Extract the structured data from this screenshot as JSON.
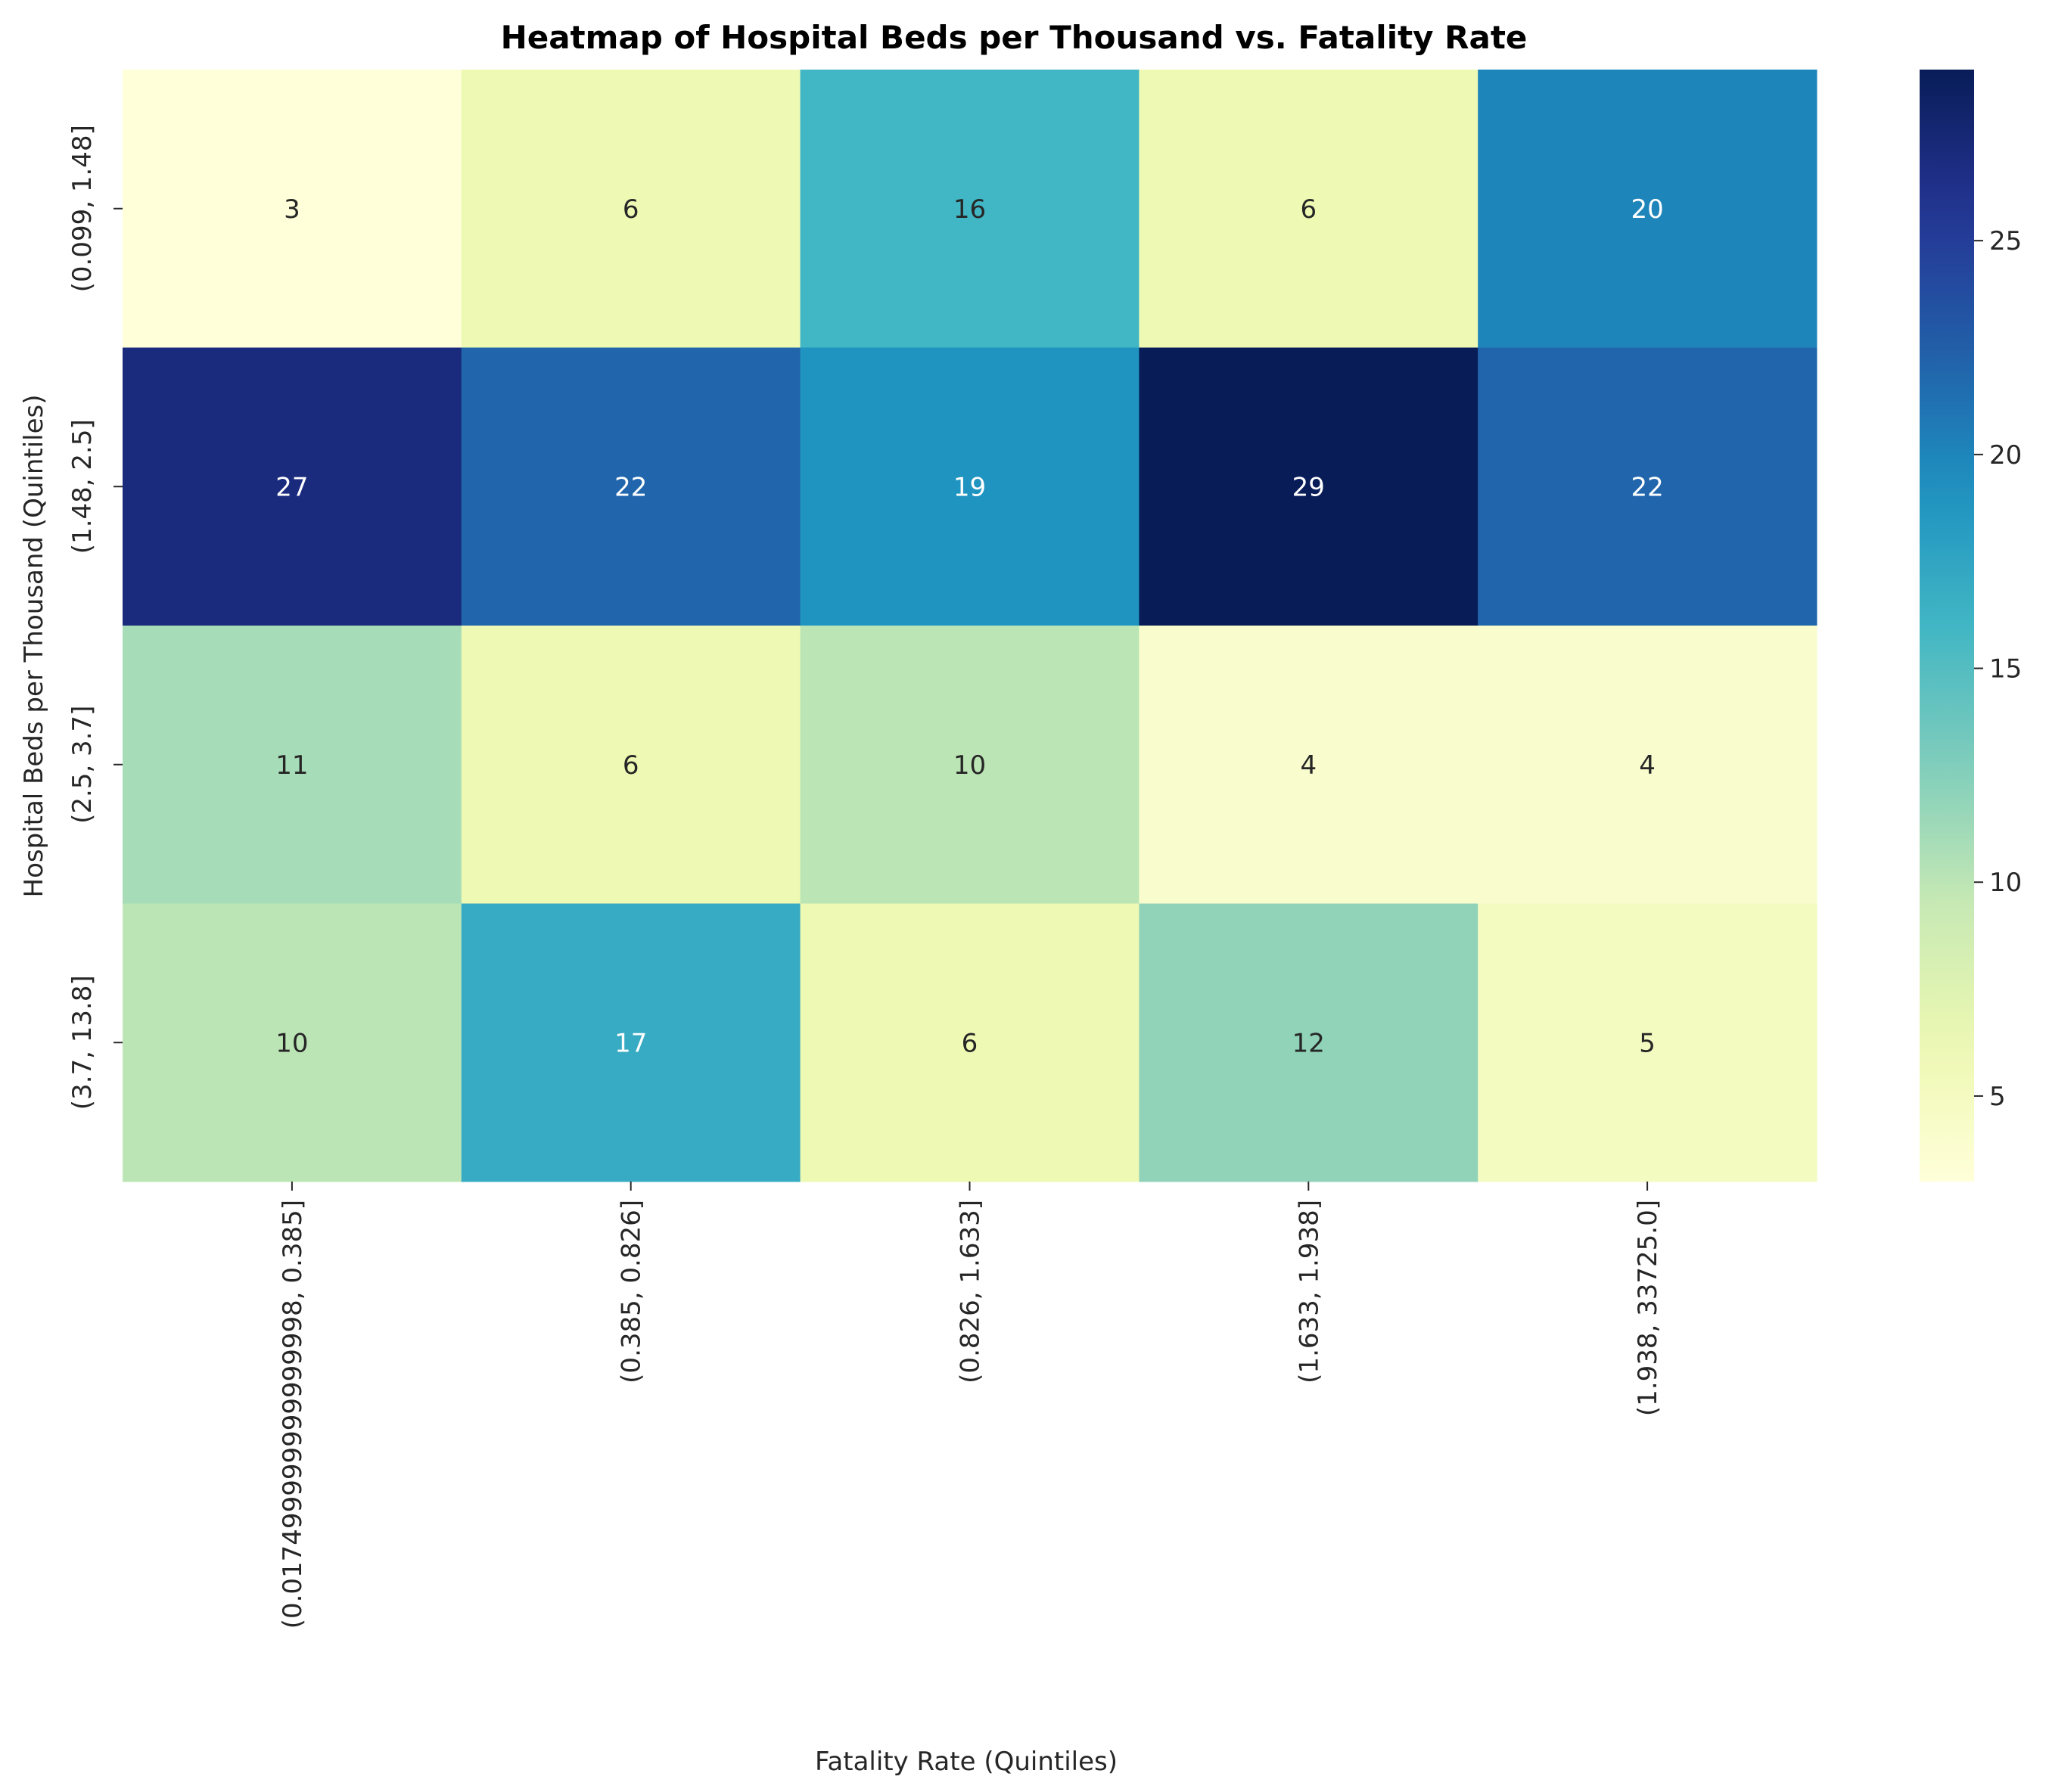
{
  "chart_data": {
    "type": "heatmap",
    "title": "Heatmap of Hospital Beds per Thousand vs. Fatality Rate",
    "xlabel": "Fatality Rate (Quintiles)",
    "ylabel": "Hospital Beds per Thousand (Quintiles)",
    "x_categories": [
      "(0.017499999999999998, 0.385]",
      "(0.385, 0.826]",
      "(0.826, 1.633]",
      "(1.633, 1.938]",
      "(1.938, 33725.0]"
    ],
    "y_categories": [
      "(0.099, 1.48]",
      "(1.48, 2.5]",
      "(2.5, 3.7]",
      "(3.7, 13.8]"
    ],
    "values": [
      [
        3,
        6,
        16,
        6,
        20
      ],
      [
        27,
        22,
        19,
        29,
        22
      ],
      [
        11,
        6,
        10,
        4,
        4
      ],
      [
        10,
        17,
        6,
        12,
        5
      ]
    ],
    "colormap": "YlGnBu",
    "colorbar": {
      "min": 3,
      "max": 29,
      "ticks": [
        5,
        10,
        15,
        20,
        25
      ]
    },
    "annotations": true,
    "grid": false,
    "legend": "colorbar-right"
  }
}
